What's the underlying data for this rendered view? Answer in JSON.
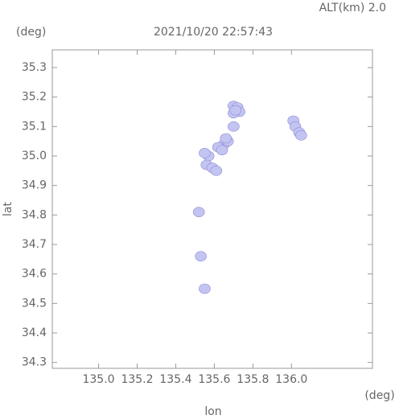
{
  "chart_data": {
    "type": "scatter",
    "header": "ALT(km)  2.0",
    "title": "2021/10/20 22:57:43",
    "y_unit": "(deg)",
    "x_unit": "(deg)",
    "xlabel": "lon",
    "ylabel": "lat",
    "color": "#c4c4f2",
    "x": [
      135.7,
      135.72,
      135.73,
      135.7,
      135.71,
      135.65,
      135.67,
      135.62,
      135.66,
      135.64,
      135.57,
      135.56,
      135.59,
      135.61,
      135.55,
      136.01,
      136.02,
      136.04,
      136.05,
      135.52,
      135.53,
      135.55,
      135.7
    ],
    "y": [
      35.17,
      35.165,
      35.15,
      35.145,
      35.155,
      35.04,
      35.05,
      35.03,
      35.06,
      35.02,
      35.0,
      34.97,
      34.96,
      34.95,
      35.01,
      35.12,
      35.1,
      35.08,
      35.07,
      34.81,
      34.66,
      34.55,
      35.1
    ],
    "xlim": [
      134.76,
      136.42
    ],
    "ylim": [
      34.28,
      35.36
    ],
    "xticks": [
      {
        "value": 135,
        "label": "135.0"
      },
      135.2,
      135.4,
      135.6,
      135.8,
      {
        "value": 136,
        "label": "136.0"
      }
    ],
    "yticks": [
      34.3,
      34.4,
      34.5,
      34.6,
      34.7,
      34.8,
      34.9,
      {
        "value": 35,
        "label": "35.0"
      },
      35.1,
      35.2,
      35.3
    ],
    "grid": false
  }
}
